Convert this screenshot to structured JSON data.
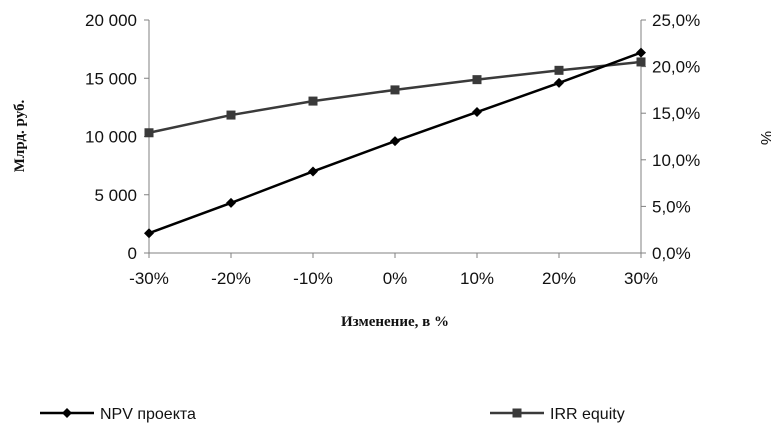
{
  "chart_data": {
    "type": "line",
    "title": "",
    "xlabel": "Изменение, в %",
    "ylabel": "Млрд. руб.",
    "y2label": "%",
    "categories": [
      "-30%",
      "-20%",
      "-10%",
      "0%",
      "10%",
      "20%",
      "30%"
    ],
    "y_ticks": [
      "0",
      "5 000",
      "10 000",
      "15 000",
      "20 000"
    ],
    "y2_ticks": [
      "0,0%",
      "5,0%",
      "10,0%",
      "15,0%",
      "20,0%",
      "25,0%"
    ],
    "ylim": [
      0,
      20000
    ],
    "y2lim": [
      0,
      25
    ],
    "grid": false,
    "legend_position": "bottom",
    "series": [
      {
        "name": "NPV проекта",
        "axis": "left",
        "marker": "diamond",
        "color": "#000000",
        "values": [
          1700,
          4300,
          7000,
          9600,
          12100,
          14600,
          17200
        ]
      },
      {
        "name": "IRR equity",
        "axis": "right",
        "marker": "square",
        "color": "#3a3a3a",
        "values": [
          12.9,
          14.8,
          16.3,
          17.5,
          18.6,
          19.6,
          20.5
        ]
      }
    ]
  }
}
